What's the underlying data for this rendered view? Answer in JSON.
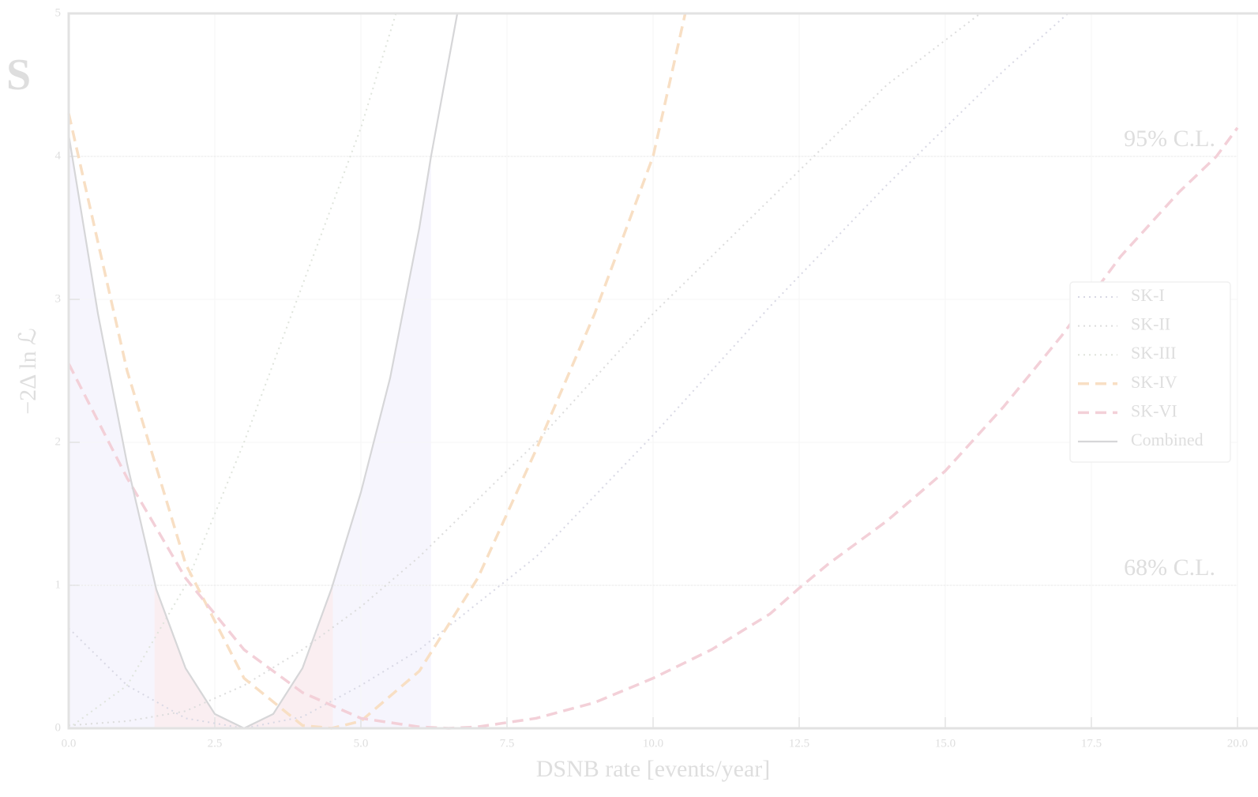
{
  "chart_data": {
    "type": "line",
    "side_text": "S",
    "xlabel": "DSNB rate [events/year]",
    "ylabel": "−2Δ ln ℒ",
    "xlim": [
      0,
      20
    ],
    "ylim": [
      0,
      5
    ],
    "xticks": [
      {
        "value": 0,
        "label": "0.0"
      },
      {
        "value": 2.5,
        "label": "2.5"
      },
      {
        "value": 5,
        "label": "5.0"
      },
      {
        "value": 7.5,
        "label": "7.5"
      },
      {
        "value": 10,
        "label": "10.0"
      },
      {
        "value": 12.5,
        "label": "12.5"
      },
      {
        "value": 15,
        "label": "15.0"
      },
      {
        "value": 17.5,
        "label": "17.5"
      },
      {
        "value": 20,
        "label": "20.0"
      }
    ],
    "yticks": [
      0,
      1,
      2,
      3,
      4,
      5
    ],
    "grid": true,
    "legend": "right",
    "reference_lines": [
      {
        "value": 4,
        "label": "95% C.L."
      },
      {
        "value": 1,
        "label": "68% C.L."
      }
    ],
    "shaded_95": [
      0,
      6.2
    ],
    "shaded_68": [
      1.47,
      4.52
    ],
    "series": [
      {
        "name": "SK-I",
        "color": "#d8d8e4",
        "dash": "dotted",
        "x": [
          0,
          1,
          2,
          3,
          4,
          5,
          6,
          8,
          10,
          12,
          14,
          16,
          17.1
        ],
        "values": [
          0.7,
          0.3,
          0.07,
          0,
          0.08,
          0.3,
          0.55,
          1.2,
          2.05,
          2.95,
          3.8,
          4.6,
          5
        ]
      },
      {
        "name": "SK-II",
        "color": "#dcdcdc",
        "dash": "dotted",
        "x": [
          0,
          1,
          2,
          3,
          4,
          5,
          6,
          8,
          10,
          12,
          14,
          15.6
        ],
        "values": [
          0.02,
          0.05,
          0.12,
          0.3,
          0.55,
          0.85,
          1.2,
          2.0,
          2.9,
          3.7,
          4.5,
          5
        ]
      },
      {
        "name": "SK-III",
        "color": "#dfe4dc",
        "dash": "dotted",
        "x": [
          0,
          1,
          2,
          3,
          4,
          5,
          5.6
        ],
        "values": [
          0,
          0.3,
          1.0,
          2.0,
          3.1,
          4.2,
          5
        ]
      },
      {
        "name": "SK-IV",
        "color": "#f8dfc4",
        "dash": "dashed",
        "x": [
          0,
          1,
          2,
          3,
          4,
          4.5,
          5,
          6,
          7,
          8,
          9,
          10,
          10.55
        ],
        "values": [
          4.3,
          2.5,
          1.15,
          0.35,
          0.02,
          0,
          0.05,
          0.4,
          1.05,
          1.95,
          2.9,
          4.0,
          5
        ]
      },
      {
        "name": "SK-VI",
        "color": "#f3d0d8",
        "dash": "dashed",
        "x": [
          0,
          1,
          2,
          3,
          4,
          5,
          6,
          6.5,
          7,
          8,
          9,
          10,
          11,
          12,
          12.5,
          13,
          14,
          15,
          16,
          17,
          18,
          19,
          19.64,
          20
        ],
        "values": [
          2.55,
          1.75,
          1.05,
          0.55,
          0.25,
          0.07,
          0.01,
          0,
          0.01,
          0.07,
          0.18,
          0.35,
          0.55,
          0.8,
          0.98,
          1.15,
          1.45,
          1.8,
          2.25,
          2.75,
          3.3,
          3.75,
          4.0,
          4.2
        ]
      },
      {
        "name": "Combined",
        "color": "#d6d6d8",
        "dash": "solid",
        "x": [
          0,
          0.5,
          1,
          1.5,
          2,
          2.5,
          3,
          3.5,
          4,
          4.5,
          5,
          5.5,
          6,
          6.2,
          6.65
        ],
        "values": [
          4.15,
          2.9,
          1.85,
          0.97,
          0.42,
          0.1,
          0,
          0.1,
          0.42,
          0.98,
          1.65,
          2.45,
          3.5,
          4.0,
          5
        ]
      }
    ]
  }
}
